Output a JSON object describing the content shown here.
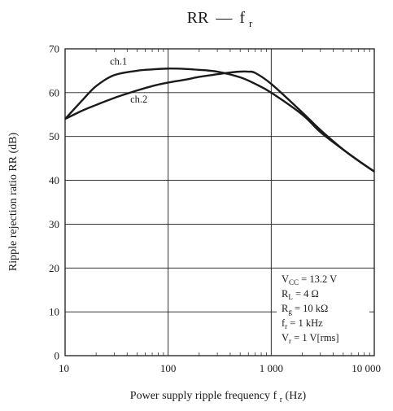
{
  "chart_data": {
    "type": "line",
    "title_main": "RR",
    "title_dash": "—",
    "title_sym": "f",
    "title_sub": "r",
    "xlabel_main": "Power supply ripple frequency  f",
    "xlabel_sub": "r",
    "xlabel_unit": "  (Hz)",
    "ylabel": "Ripple rejection ratio  RR  (dB)",
    "x_scale": "log",
    "xlim": [
      10,
      10000
    ],
    "ylim": [
      0,
      70
    ],
    "grid": true,
    "x_ticks": [
      {
        "value": 10,
        "label": "10"
      },
      {
        "value": 100,
        "label": "100"
      },
      {
        "value": 1000,
        "label": "1 000"
      },
      {
        "value": 10000,
        "label": "10 000"
      }
    ],
    "y_ticks": [
      {
        "value": 0,
        "label": "0"
      },
      {
        "value": 10,
        "label": "10"
      },
      {
        "value": 20,
        "label": "20"
      },
      {
        "value": 30,
        "label": "30"
      },
      {
        "value": 40,
        "label": "40"
      },
      {
        "value": 50,
        "label": "50"
      },
      {
        "value": 60,
        "label": "60"
      },
      {
        "value": 70,
        "label": "70"
      }
    ],
    "series": [
      {
        "name": "ch.1",
        "label_at": {
          "x": 33,
          "y": 66.4
        },
        "x": [
          10,
          15,
          20,
          30,
          50,
          70,
          100,
          150,
          200,
          300,
          500,
          700,
          1000,
          2000,
          3000,
          5000,
          7000,
          10000
        ],
        "y": [
          54,
          58.5,
          61.5,
          64.0,
          65.0,
          65.3,
          65.5,
          65.4,
          65.2,
          64.8,
          63.5,
          62.0,
          60.0,
          55.0,
          51.0,
          47.0,
          44.5,
          42.0
        ]
      },
      {
        "name": "ch.2",
        "label_at": {
          "x": 52,
          "y": 57.7
        },
        "x": [
          10,
          15,
          20,
          30,
          50,
          70,
          100,
          150,
          200,
          300,
          400,
          500,
          600,
          700,
          1000,
          2000,
          3000,
          5000,
          7000,
          10000
        ],
        "y": [
          54,
          56.0,
          57.2,
          58.8,
          60.5,
          61.5,
          62.3,
          63.0,
          63.6,
          64.2,
          64.6,
          64.8,
          64.8,
          64.5,
          62.0,
          55.5,
          51.5,
          47.0,
          44.5,
          42.0
        ]
      }
    ],
    "conditions": [
      {
        "main": "V",
        "sub": "CC",
        "rest": " = 13.2 V"
      },
      {
        "main": "R",
        "sub": "L",
        "rest": " = 4 Ω"
      },
      {
        "main": "R",
        "sub": "g",
        "rest": " = 10 kΩ"
      },
      {
        "main": "f",
        "sub": "r",
        "rest": " = 1 kHz"
      },
      {
        "main": "V",
        "sub": "r",
        "rest": " = 1 V[rms]"
      }
    ],
    "line_color": "#1a1a1a",
    "grid_color": "#1a1a1a"
  }
}
